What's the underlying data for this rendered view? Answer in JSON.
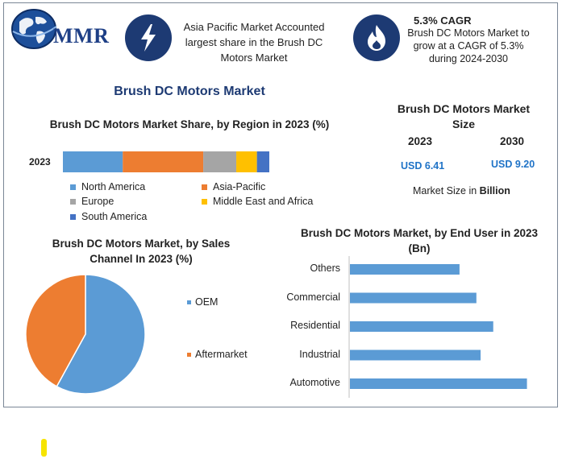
{
  "brand": {
    "name": "MMR"
  },
  "colors": {
    "navy": "#1d3a73",
    "north_america": "#5b9bd5",
    "asia_pacific": "#ed7d31",
    "europe": "#a5a5a5",
    "mea": "#ffc000",
    "south_america": "#4472c4",
    "usd": "#1f73c7"
  },
  "icons": {
    "badge1": "lightning-bolt-icon",
    "badge2": "flame-icon"
  },
  "header": {
    "info1": [
      "Asia Pacific Market Accounted",
      "largest share in the Brush DC",
      "Motors Market"
    ],
    "info2_title": "5.3% CAGR",
    "info2": [
      "Brush DC Motors Market to",
      "grow at a CAGR of 5.3%",
      "during 2024-2030"
    ]
  },
  "main_title": "Brush DC Motors Market",
  "market_size": {
    "title_line1": "Brush DC Motors Market",
    "title_line2": "Size",
    "year1": "2023",
    "year2": "2030",
    "value1": "USD 6.41",
    "value2": "USD 9.20",
    "caption_prefix": "Market Size in ",
    "caption_bold": "Billion"
  },
  "chart_data": [
    {
      "type": "bar",
      "orientation": "horizontal-stacked",
      "title": "Brush DC Motors Market Share, by Region in 2023 (%)",
      "categories": [
        "2023"
      ],
      "series": [
        {
          "name": "North America",
          "values": [
            29
          ]
        },
        {
          "name": "Asia-Pacific",
          "values": [
            39
          ]
        },
        {
          "name": "Europe",
          "values": [
            16
          ]
        },
        {
          "name": "Middle East and Africa",
          "values": [
            10
          ]
        },
        {
          "name": "South America",
          "values": [
            6
          ]
        }
      ],
      "legend": "bottom"
    },
    {
      "type": "pie",
      "title": "Brush DC Motors Market, by Sales Channel In 2023 (%)",
      "labels": [
        "OEM",
        "Aftermarket"
      ],
      "values": [
        58,
        42
      ],
      "legend": "right"
    },
    {
      "type": "bar",
      "orientation": "horizontal",
      "title": "Brush DC Motors Market, by End User in 2023 (Bn)",
      "categories": [
        "Others",
        "Commercial",
        "Residential",
        "Industrial",
        "Automotive"
      ],
      "values": [
        1.3,
        1.5,
        1.7,
        1.55,
        2.1
      ]
    }
  ]
}
